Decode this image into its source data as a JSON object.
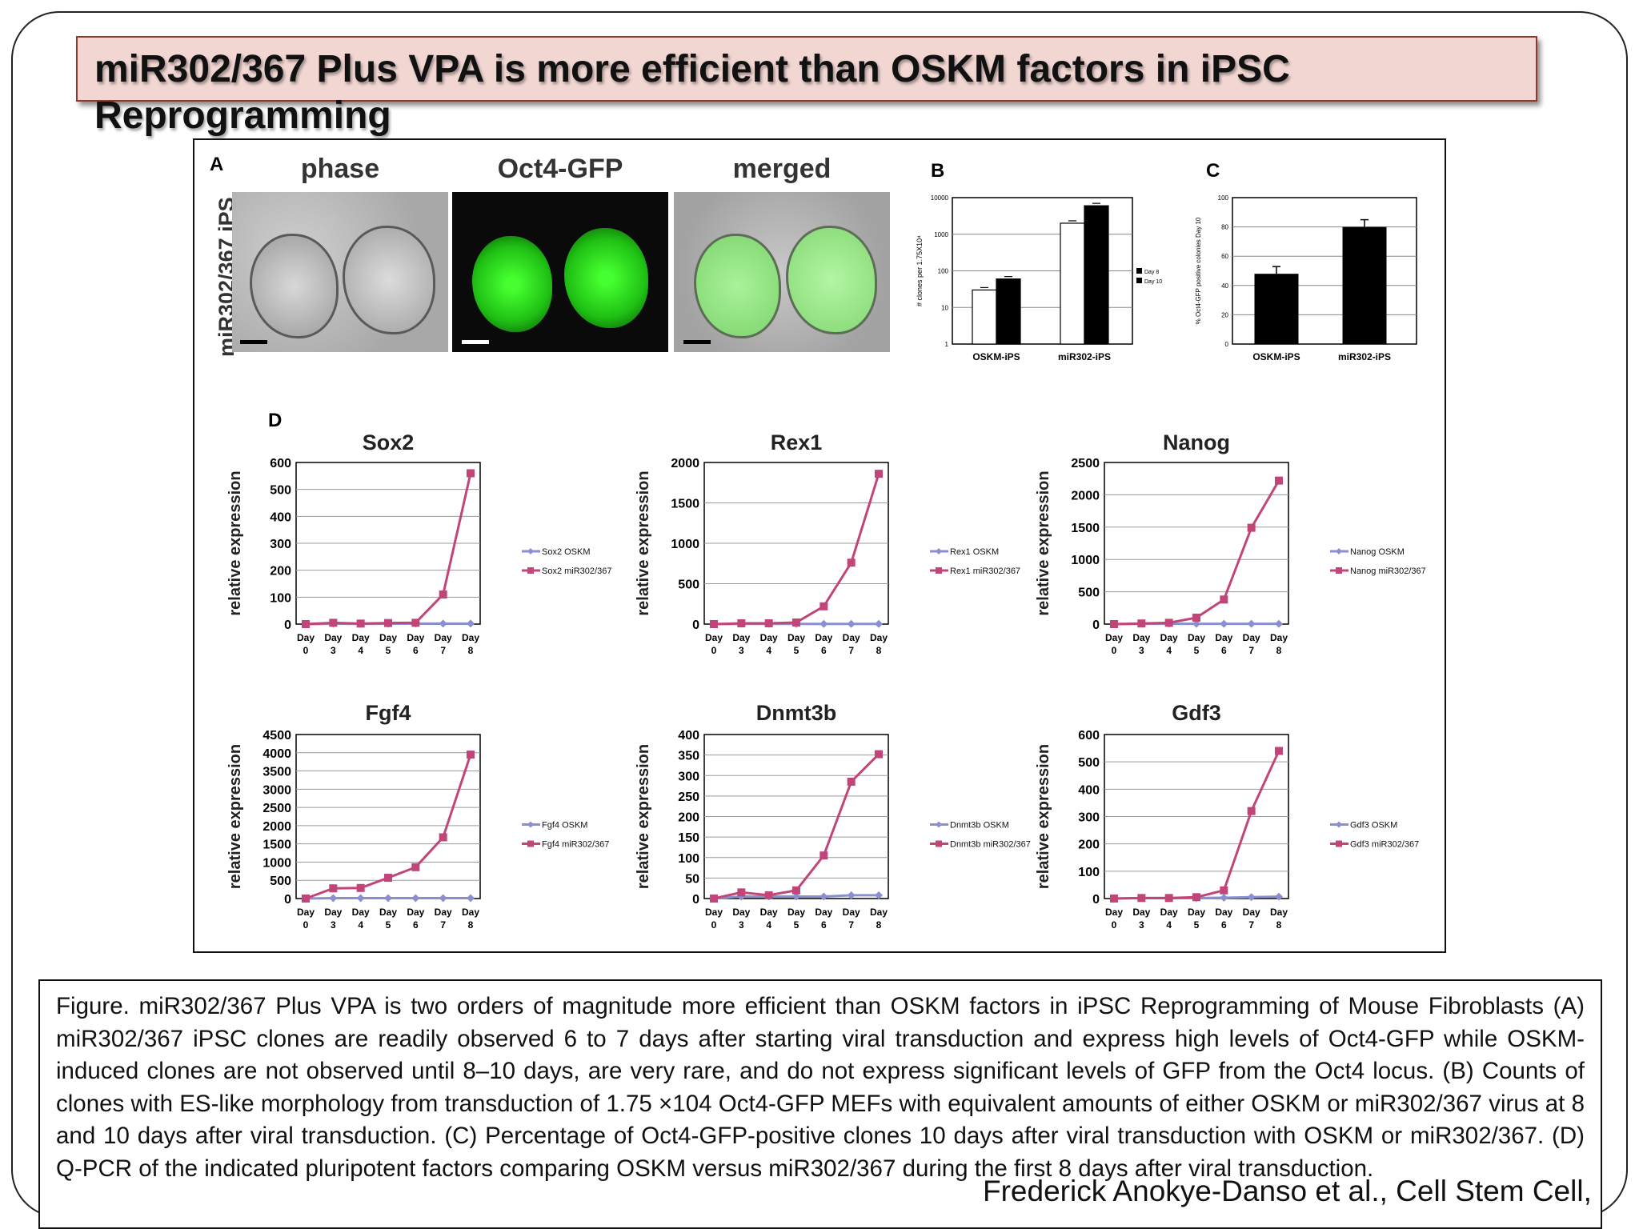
{
  "slide": {
    "title": "miR302/367 Plus VPA is more efficient than OSKM factors in iPSC Reprogramming"
  },
  "figure": {
    "panel_a": {
      "letter": "A",
      "row_label": "miR302/367 iPS",
      "image_labels": [
        "phase",
        "Oct4-GFP",
        "merged"
      ],
      "colors": {
        "gfp": "#2ee81e"
      }
    },
    "panel_b": {
      "letter": "B",
      "ylabel": "# clones per 1.75X10⁴",
      "yticks": [
        "10000",
        "1000",
        "100",
        "10",
        "1"
      ],
      "legend": [
        "Day 8",
        "Day 10"
      ]
    },
    "panel_c": {
      "letter": "C",
      "ylabel": "% Oct4-GFP positive colonies Day 10",
      "yticks": [
        "100",
        "80",
        "60",
        "40",
        "20",
        "0"
      ]
    },
    "panel_d": {
      "letter": "D"
    },
    "xtick_day": "Day",
    "colors": {
      "oskm": "#8a8fcf",
      "mir": "#c2457a"
    }
  },
  "chart_data": [
    {
      "type": "bar",
      "scale": "log",
      "categories": [
        "OSKM-iPS",
        "miR302-iPS"
      ],
      "series": [
        {
          "name": "Day 8",
          "values": [
            30,
            2000
          ]
        },
        {
          "name": "Day 10",
          "values": [
            60,
            6000
          ]
        }
      ],
      "ylim": [
        1,
        10000
      ]
    },
    {
      "type": "bar",
      "categories": [
        "OSKM-iPS",
        "miR302-iPS"
      ],
      "series": [
        {
          "values": [
            48,
            80
          ]
        }
      ],
      "ylim": [
        0,
        100
      ]
    },
    {
      "type": "line",
      "title": "Sox2",
      "ylabel": "relative expression",
      "x": [
        "0",
        "3",
        "4",
        "5",
        "6",
        "7",
        "8"
      ],
      "ylim": [
        0,
        600
      ],
      "yticks": [
        0,
        100,
        200,
        300,
        400,
        500,
        600
      ],
      "series": [
        {
          "name": "Sox2 OSKM",
          "values": [
            0,
            1,
            1,
            1,
            2,
            2,
            2
          ]
        },
        {
          "name": "Sox2 miR302/367",
          "values": [
            0,
            5,
            2,
            4,
            5,
            110,
            560
          ]
        }
      ]
    },
    {
      "type": "line",
      "title": "Rex1",
      "ylabel": "relative expression",
      "x": [
        "0",
        "3",
        "4",
        "5",
        "6",
        "7",
        "8"
      ],
      "ylim": [
        0,
        2000
      ],
      "yticks": [
        0,
        500,
        1000,
        1500,
        2000
      ],
      "series": [
        {
          "name": "Rex1 OSKM",
          "values": [
            0,
            2,
            2,
            2,
            3,
            3,
            3
          ]
        },
        {
          "name": "Rex1 miR302/367",
          "values": [
            0,
            10,
            10,
            20,
            220,
            760,
            1860
          ]
        }
      ]
    },
    {
      "type": "line",
      "title": "Nanog",
      "ylabel": "relative expression",
      "x": [
        "0",
        "3",
        "4",
        "5",
        "6",
        "7",
        "8"
      ],
      "ylim": [
        0,
        2500
      ],
      "yticks": [
        0,
        500,
        1000,
        1500,
        2000,
        2500
      ],
      "series": [
        {
          "name": "Nanog OSKM",
          "values": [
            0,
            5,
            5,
            5,
            5,
            5,
            5
          ]
        },
        {
          "name": "Nanog miR302/367",
          "values": [
            0,
            10,
            20,
            100,
            380,
            1490,
            2220
          ]
        }
      ]
    },
    {
      "type": "line",
      "title": "Fgf4",
      "ylabel": "relative expression",
      "x": [
        "0",
        "3",
        "4",
        "5",
        "6",
        "7",
        "8"
      ],
      "ylim": [
        0,
        4500
      ],
      "yticks": [
        0,
        500,
        1000,
        1500,
        2000,
        2500,
        3000,
        3500,
        4000,
        4500
      ],
      "series": [
        {
          "name": "Fgf4 OSKM",
          "values": [
            0,
            10,
            10,
            10,
            10,
            10,
            10
          ]
        },
        {
          "name": "Fgf4 miR302/367",
          "values": [
            0,
            280,
            290,
            570,
            860,
            1680,
            3950
          ]
        }
      ]
    },
    {
      "type": "line",
      "title": "Dnmt3b",
      "ylabel": "relative expression",
      "x": [
        "0",
        "3",
        "4",
        "5",
        "6",
        "7",
        "8"
      ],
      "ylim": [
        0,
        400
      ],
      "yticks": [
        0,
        50,
        100,
        150,
        200,
        250,
        300,
        350,
        400
      ],
      "series": [
        {
          "name": "Dnmt3b OSKM",
          "values": [
            0,
            5,
            5,
            5,
            5,
            8,
            8
          ]
        },
        {
          "name": "Dnmt3b miR302/367",
          "values": [
            0,
            15,
            8,
            20,
            105,
            285,
            352
          ]
        }
      ]
    },
    {
      "type": "line",
      "title": "Gdf3",
      "ylabel": "relative expression",
      "x": [
        "0",
        "3",
        "4",
        "5",
        "6",
        "7",
        "8"
      ],
      "ylim": [
        0,
        600
      ],
      "yticks": [
        0,
        100,
        200,
        300,
        400,
        500,
        600
      ],
      "series": [
        {
          "name": "Gdf3 OSKM",
          "values": [
            0,
            2,
            2,
            2,
            3,
            5,
            7
          ]
        },
        {
          "name": "Gdf3 miR302/367",
          "values": [
            0,
            2,
            2,
            5,
            30,
            320,
            540
          ]
        }
      ]
    }
  ],
  "caption": {
    "text": "Figure. miR302/367 Plus VPA is two orders of magnitude more efficient than OSKM factors in iPSC Reprogramming of Mouse Fibroblasts (A) miR302/367 iPSC clones are readily observed 6 to 7 days after starting viral transduction and express high levels of Oct4-GFP while OSKM-induced clones are not observed until 8–10 days, are very rare, and do not express significant levels of GFP from the Oct4 locus. (B) Counts of clones with ES-like morphology from transduction of 1.75 ×104 Oct4-GFP MEFs with equivalent amounts of either OSKM or miR302/367 virus at 8 and 10 days after viral transduction. (C) Percentage of Oct4-GFP-positive clones 10 days after viral transduction with OSKM or miR302/367. (D) Q-PCR of the indicated pluripotent factors comparing OSKM versus miR302/367 during the first 8 days after viral transduction.",
    "citation": "Frederick Anokye-Danso et al., Cell Stem Cell,"
  }
}
